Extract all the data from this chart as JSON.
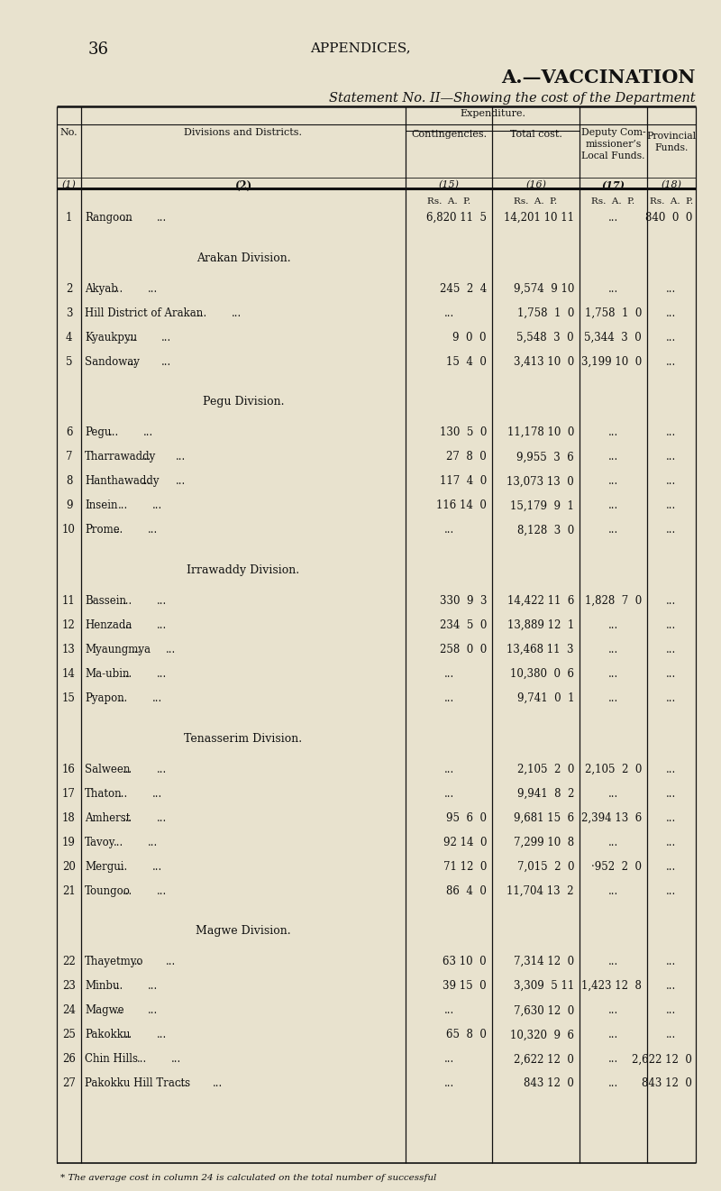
{
  "bg_color": "#e8e2ce",
  "page_number": "36",
  "page_header": "APPENDICES,",
  "title1": "A.—VACCINATION",
  "title2": "Statement No. II—Showing the cost of the Department",
  "rows": [
    {
      "no": "1",
      "name": "Rangoon",
      "cont": "6,820 11  5",
      "total": "14,201 10 11",
      "dep": "...",
      "prov": "840  0  0",
      "section": null
    },
    {
      "no": null,
      "name": "Arakan Division.",
      "cont": "",
      "total": "",
      "dep": "",
      "prov": "",
      "section": "arakan"
    },
    {
      "no": "2",
      "name": "Akyab",
      "cont": "245  2  4",
      "total": "9,574  9 10",
      "dep": "...",
      "prov": "...",
      "section": null
    },
    {
      "no": "3",
      "name": "Hill District of Arakan",
      "cont": "...",
      "total": "1,758  1  0",
      "dep": "1,758  1  0",
      "prov": "...",
      "section": null
    },
    {
      "no": "4",
      "name": "Kyaukpyu",
      "cont": "9  0  0",
      "total": "5,548  3  0",
      "dep": "5,344  3  0",
      "prov": "...",
      "section": null
    },
    {
      "no": "5",
      "name": "Sandoway",
      "cont": "15  4  0",
      "total": "3,413 10  0",
      "dep": "3,199 10  0",
      "prov": "...",
      "section": null
    },
    {
      "no": null,
      "name": "Pegu Division.",
      "cont": "",
      "total": "",
      "dep": "",
      "prov": "",
      "section": "pegu"
    },
    {
      "no": "6",
      "name": "Pegu",
      "cont": "130  5  0",
      "total": "11,178 10  0",
      "dep": "...",
      "prov": "...",
      "section": null
    },
    {
      "no": "7",
      "name": "Tharrawaddy",
      "cont": "27  8  0",
      "total": "9,955  3  6",
      "dep": "...",
      "prov": "...",
      "section": null
    },
    {
      "no": "8",
      "name": "Hanthawaddy",
      "cont": "117  4  0",
      "total": "13,073 13  0",
      "dep": "...",
      "prov": "...",
      "section": null
    },
    {
      "no": "9",
      "name": "Insein",
      "cont": "116 14  0",
      "total": "15,179  9  1",
      "dep": "...",
      "prov": "...",
      "section": null
    },
    {
      "no": "10",
      "name": "Prome",
      "cont": "...",
      "total": "8,128  3  0",
      "dep": "...",
      "prov": "...",
      "section": null
    },
    {
      "no": null,
      "name": "Irrawaddy Division.",
      "cont": "",
      "total": "",
      "dep": "",
      "prov": "",
      "section": "irrawaddy"
    },
    {
      "no": "11",
      "name": "Bassein",
      "cont": "330  9  3",
      "total": "14,422 11  6",
      "dep": "1,828  7  0",
      "prov": "...",
      "section": null
    },
    {
      "no": "12",
      "name": "Henzada",
      "cont": "234  5  0",
      "total": "13,889 12  1",
      "dep": "...",
      "prov": "...",
      "section": null
    },
    {
      "no": "13",
      "name": "Myaungmya",
      "cont": "258  0  0",
      "total": "13,468 11  3",
      "dep": "...",
      "prov": "...",
      "section": null
    },
    {
      "no": "14",
      "name": "Ma-ubin",
      "cont": "...",
      "total": "10,380  0  6",
      "dep": "...",
      "prov": "...",
      "section": null
    },
    {
      "no": "15",
      "name": "Pyapon",
      "cont": "...",
      "total": "9,741  0  1",
      "dep": "...",
      "prov": "...",
      "section": null
    },
    {
      "no": null,
      "name": "Tenasserim Division.",
      "cont": "",
      "total": "",
      "dep": "",
      "prov": "",
      "section": "tenasserim"
    },
    {
      "no": "16",
      "name": "Salween",
      "cont": "...",
      "total": "2,105  2  0",
      "dep": "2,105  2  0",
      "prov": "...",
      "section": null
    },
    {
      "no": "17",
      "name": "Thaton",
      "cont": "...",
      "total": "9,941  8  2",
      "dep": "...",
      "prov": "...",
      "section": null
    },
    {
      "no": "18",
      "name": "Amherst",
      "cont": "95  6  0",
      "total": "9,681 15  6",
      "dep": "2,394 13  6",
      "prov": "...",
      "section": null
    },
    {
      "no": "19",
      "name": "Tavoy",
      "cont": "92 14  0",
      "total": "7,299 10  8",
      "dep": "...",
      "prov": "...",
      "section": null
    },
    {
      "no": "20",
      "name": "Mergui",
      "cont": "71 12  0",
      "total": "7,015  2  0",
      "dep": "·952  2  0",
      "prov": "...",
      "section": null
    },
    {
      "no": "21",
      "name": "Toungoo",
      "cont": "86  4  0",
      "total": "11,704 13  2",
      "dep": "...",
      "prov": "...",
      "section": null
    },
    {
      "no": null,
      "name": "Magwe Division.",
      "cont": "",
      "total": "",
      "dep": "",
      "prov": "",
      "section": "magwe"
    },
    {
      "no": "22",
      "name": "Thayetmyo",
      "cont": "63 10  0",
      "total": "7,314 12  0",
      "dep": "...",
      "prov": "...",
      "section": null
    },
    {
      "no": "23",
      "name": "Minbu",
      "cont": "39 15  0",
      "total": "3,309  5 11",
      "dep": "1,423 12  8",
      "prov": "...",
      "section": null
    },
    {
      "no": "24",
      "name": "Magwe",
      "cont": "...",
      "total": "7,630 12  0",
      "dep": "...",
      "prov": "...",
      "section": null
    },
    {
      "no": "25",
      "name": "Pakokku",
      "cont": "65  8  0",
      "total": "10,320  9  6",
      "dep": "...",
      "prov": "...",
      "section": null
    },
    {
      "no": "26",
      "name": "Chin Hills",
      "cont": "...",
      "total": "2,622 12  0",
      "dep": "...",
      "prov": "2,622 12  0",
      "section": null
    },
    {
      "no": "27",
      "name": "Pakokku Hill Tracts",
      "cont": "...",
      "total": "843 12  0",
      "dep": "...",
      "prov": "843 12  0",
      "section": null
    }
  ],
  "footer": "* The average cost in column 24 is calculated on the total number of successful"
}
